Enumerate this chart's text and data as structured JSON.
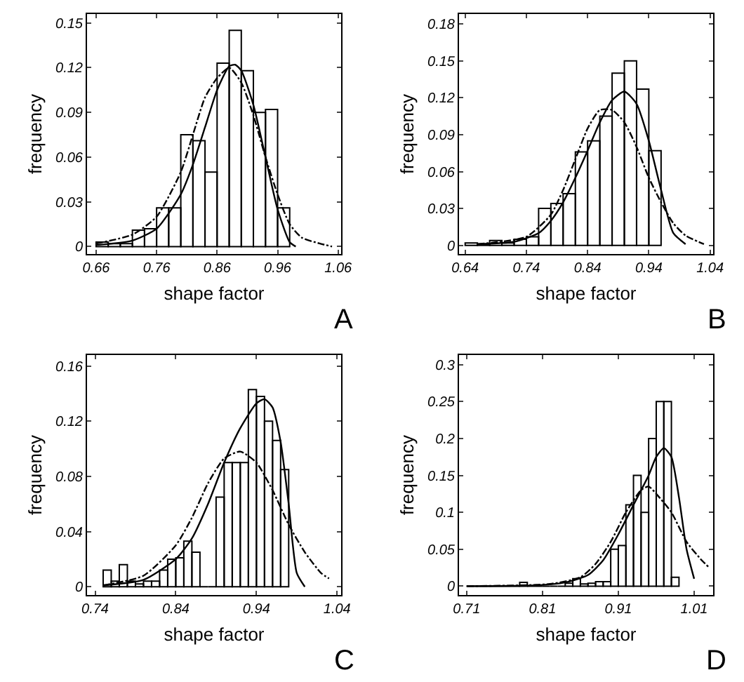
{
  "chart_data": [
    {
      "type": "histogram",
      "xlabel": "shape factor",
      "ylabel": "frequency",
      "annotations": [
        "A"
      ],
      "color": "#000000",
      "bins": [
        0.66,
        0.68,
        0.7,
        0.72,
        0.74,
        0.76,
        0.78,
        0.8,
        0.82,
        0.84,
        0.86,
        0.88,
        0.9,
        0.92,
        0.94,
        0.96,
        0.98
      ],
      "values": [
        0.003,
        0.002,
        0.002,
        0.011,
        0.012,
        0.026,
        0.026,
        0.075,
        0.071,
        0.05,
        0.123,
        0.145,
        0.118,
        0.09,
        0.092,
        0.026
      ],
      "series": [
        {
          "type": "line",
          "color": "#000000",
          "line_style": "solid",
          "x": [
            0.66,
            0.72,
            0.76,
            0.8,
            0.82,
            0.84,
            0.86,
            0.88,
            0.89,
            0.9,
            0.92,
            0.94,
            0.96,
            0.98,
            0.99
          ],
          "values": [
            0.001,
            0.004,
            0.012,
            0.035,
            0.055,
            0.08,
            0.105,
            0.121,
            0.122,
            0.118,
            0.095,
            0.06,
            0.025,
            0.003,
            0
          ]
        },
        {
          "type": "line",
          "color": "#000000",
          "line_style": "dashed",
          "x": [
            0.66,
            0.72,
            0.76,
            0.8,
            0.82,
            0.84,
            0.86,
            0.88,
            0.9,
            0.92,
            0.94,
            0.96,
            0.98,
            1.0,
            1.03,
            1.05
          ],
          "values": [
            0.002,
            0.008,
            0.02,
            0.05,
            0.075,
            0.1,
            0.113,
            0.12,
            0.11,
            0.088,
            0.06,
            0.035,
            0.015,
            0.006,
            0.002,
            0
          ]
        }
      ],
      "xlim": [
        0.645,
        1.065
      ],
      "xticks": [
        0.66,
        0.76,
        0.86,
        0.96,
        1.06
      ],
      "ylim": [
        -0.005,
        0.156
      ],
      "yticks": [
        0,
        0.03,
        0.06,
        0.09,
        0.12,
        0.15
      ]
    },
    {
      "type": "histogram",
      "xlabel": "shape factor",
      "ylabel": "frequency",
      "annotations": [
        "B"
      ],
      "color": "#000000",
      "bins": [
        0.64,
        0.66,
        0.68,
        0.7,
        0.72,
        0.74,
        0.76,
        0.78,
        0.8,
        0.82,
        0.84,
        0.86,
        0.88,
        0.9,
        0.92,
        0.94,
        0.96
      ],
      "values": [
        0.002,
        0.001,
        0.004,
        0.002,
        0.005,
        0.007,
        0.03,
        0.034,
        0.042,
        0.076,
        0.085,
        0.105,
        0.14,
        0.15,
        0.127,
        0.077
      ],
      "series": [
        {
          "type": "line",
          "color": "#000000",
          "line_style": "solid",
          "x": [
            0.66,
            0.72,
            0.76,
            0.78,
            0.8,
            0.82,
            0.84,
            0.86,
            0.88,
            0.9,
            0.92,
            0.94,
            0.96,
            0.98,
            1.0
          ],
          "values": [
            0.001,
            0.003,
            0.01,
            0.02,
            0.035,
            0.055,
            0.077,
            0.1,
            0.118,
            0.125,
            0.115,
            0.085,
            0.045,
            0.01,
            0.001
          ]
        },
        {
          "type": "line",
          "color": "#000000",
          "line_style": "dashed",
          "x": [
            0.66,
            0.74,
            0.78,
            0.8,
            0.82,
            0.84,
            0.86,
            0.88,
            0.9,
            0.92,
            0.94,
            0.96,
            0.98,
            1.0,
            1.03
          ],
          "values": [
            0.001,
            0.007,
            0.025,
            0.045,
            0.07,
            0.095,
            0.11,
            0.11,
            0.1,
            0.08,
            0.055,
            0.035,
            0.018,
            0.008,
            0.001
          ]
        }
      ],
      "xlim": [
        0.63,
        1.045
      ],
      "xticks": [
        0.64,
        0.74,
        0.84,
        0.94,
        1.04
      ],
      "ylim": [
        -0.007,
        0.188
      ],
      "yticks": [
        0,
        0.03,
        0.06,
        0.09,
        0.12,
        0.15,
        0.18
      ]
    },
    {
      "type": "histogram",
      "xlabel": "shape factor",
      "ylabel": "frequency",
      "annotations": [
        "C"
      ],
      "color": "#000000",
      "bins": [
        0.75,
        0.76,
        0.77,
        0.78,
        0.79,
        0.8,
        0.81,
        0.82,
        0.83,
        0.84,
        0.85,
        0.86,
        0.87,
        0.88,
        0.89,
        0.9,
        0.91,
        0.92,
        0.93,
        0.94,
        0.95,
        0.96,
        0.97,
        0.98
      ],
      "values": [
        0.012,
        0.004,
        0.016,
        0.004,
        0.002,
        0.004,
        0.004,
        0.012,
        0.02,
        0.021,
        0.033,
        0.025,
        0,
        0,
        0.065,
        0.09,
        0.09,
        0.09,
        0.143,
        0.138,
        0.12,
        0.106,
        0.085
      ],
      "series": [
        {
          "type": "line",
          "color": "#000000",
          "line_style": "solid",
          "x": [
            0.75,
            0.8,
            0.84,
            0.86,
            0.88,
            0.9,
            0.92,
            0.94,
            0.95,
            0.96,
            0.97,
            0.98,
            0.99,
            1.0
          ],
          "values": [
            0.001,
            0.005,
            0.02,
            0.035,
            0.06,
            0.09,
            0.115,
            0.133,
            0.136,
            0.13,
            0.105,
            0.06,
            0.01,
            0
          ]
        },
        {
          "type": "line",
          "color": "#000000",
          "line_style": "dashed",
          "x": [
            0.75,
            0.8,
            0.84,
            0.86,
            0.88,
            0.9,
            0.92,
            0.94,
            0.96,
            0.98,
            1.0,
            1.02,
            1.03
          ],
          "values": [
            0.001,
            0.008,
            0.03,
            0.05,
            0.075,
            0.093,
            0.098,
            0.09,
            0.07,
            0.045,
            0.025,
            0.01,
            0.006
          ]
        }
      ],
      "xlim": [
        0.73,
        1.045
      ],
      "xticks": [
        0.74,
        0.84,
        0.94,
        1.04
      ],
      "ylim": [
        -0.006,
        0.168
      ],
      "yticks": [
        0,
        0.04,
        0.08,
        0.12,
        0.16
      ]
    },
    {
      "type": "histogram",
      "xlabel": "shape factor",
      "ylabel": "frequency",
      "annotations": [
        "D"
      ],
      "color": "#000000",
      "bins": [
        0.71,
        0.72,
        0.73,
        0.74,
        0.75,
        0.76,
        0.77,
        0.78,
        0.79,
        0.8,
        0.81,
        0.82,
        0.83,
        0.84,
        0.85,
        0.86,
        0.87,
        0.88,
        0.89,
        0.9,
        0.91,
        0.92,
        0.93,
        0.94,
        0.95,
        0.96,
        0.97,
        0.98,
        0.99
      ],
      "values": [
        0,
        0,
        0,
        0,
        0,
        0,
        0,
        0.005,
        0,
        0,
        0,
        0,
        0,
        0.004,
        0.01,
        0.003,
        0.004,
        0.006,
        0.006,
        0.05,
        0.055,
        0.11,
        0.15,
        0.1,
        0.2,
        0.25,
        0.25,
        0.012
      ],
      "series": [
        {
          "type": "line",
          "color": "#000000",
          "line_style": "solid",
          "x": [
            0.71,
            0.8,
            0.84,
            0.87,
            0.89,
            0.91,
            0.93,
            0.95,
            0.96,
            0.97,
            0.98,
            0.99,
            1.0,
            1.01
          ],
          "values": [
            0,
            0.001,
            0.005,
            0.015,
            0.035,
            0.07,
            0.11,
            0.15,
            0.175,
            0.187,
            0.175,
            0.12,
            0.05,
            0.01
          ]
        },
        {
          "type": "line",
          "color": "#000000",
          "line_style": "dashed",
          "x": [
            0.71,
            0.82,
            0.86,
            0.88,
            0.9,
            0.92,
            0.94,
            0.95,
            0.96,
            0.98,
            1.0,
            1.02,
            1.03
          ],
          "values": [
            0,
            0.003,
            0.012,
            0.03,
            0.06,
            0.1,
            0.13,
            0.135,
            0.125,
            0.1,
            0.06,
            0.035,
            0.025
          ]
        }
      ],
      "xlim": [
        0.7,
        1.035
      ],
      "xticks": [
        0.71,
        0.81,
        0.91,
        1.01
      ],
      "ylim": [
        -0.012,
        0.313
      ],
      "yticks": [
        0,
        0.05,
        0.1,
        0.15,
        0.2,
        0.25,
        0.3
      ]
    }
  ]
}
